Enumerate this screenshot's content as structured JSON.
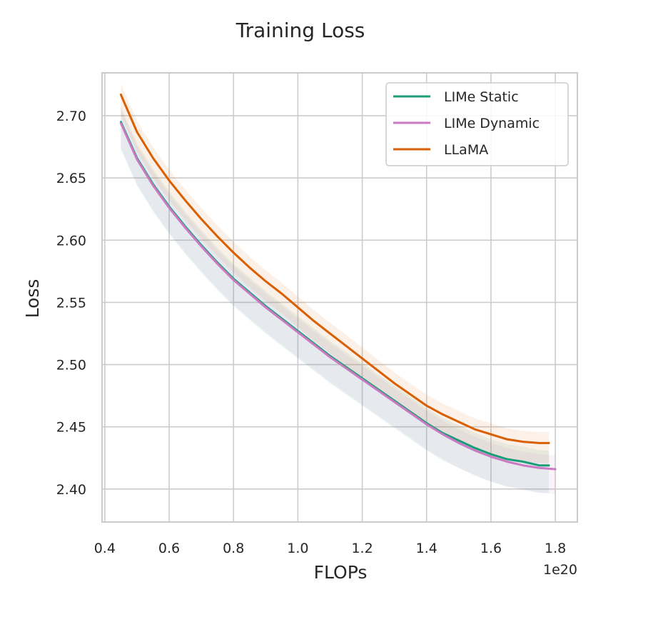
{
  "chart_data": {
    "type": "line",
    "title": "Training Loss",
    "xlabel": "FLOPs",
    "ylabel": "Loss",
    "x_offset_label": "1e20",
    "xlim": [
      0.3915,
      1.8685
    ],
    "ylim": [
      2.3735,
      2.7345
    ],
    "xticks": [
      0.4,
      0.6,
      0.8,
      1.0,
      1.2,
      1.4,
      1.6,
      1.8
    ],
    "xtick_labels": [
      "0.4",
      "0.6",
      "0.8",
      "1.0",
      "1.2",
      "1.4",
      "1.6",
      "1.8"
    ],
    "yticks": [
      2.4,
      2.45,
      2.5,
      2.55,
      2.6,
      2.65,
      2.7
    ],
    "ytick_labels": [
      "2.40",
      "2.45",
      "2.50",
      "2.55",
      "2.60",
      "2.65",
      "2.70"
    ],
    "grid": true,
    "legend_position": "top-right",
    "series": [
      {
        "name": "LIMe Static",
        "color": "#1b9e77",
        "x": [
          0.45,
          0.5,
          0.55,
          0.6,
          0.65,
          0.7,
          0.75,
          0.8,
          0.85,
          0.9,
          0.95,
          1.0,
          1.05,
          1.1,
          1.15,
          1.2,
          1.25,
          1.3,
          1.35,
          1.4,
          1.45,
          1.5,
          1.55,
          1.6,
          1.65,
          1.7,
          1.75,
          1.78
        ],
        "y": [
          2.695,
          2.666,
          2.645,
          2.627,
          2.611,
          2.596,
          2.582,
          2.569,
          2.558,
          2.547,
          2.537,
          2.527,
          2.517,
          2.507,
          2.498,
          2.489,
          2.48,
          2.471,
          2.462,
          2.453,
          2.445,
          2.439,
          2.433,
          2.428,
          2.424,
          2.422,
          2.419,
          2.419
        ]
      },
      {
        "name": "LIMe Dynamic",
        "color": "#cc79c4",
        "x": [
          0.45,
          0.5,
          0.55,
          0.6,
          0.65,
          0.7,
          0.75,
          0.8,
          0.85,
          0.9,
          0.95,
          1.0,
          1.05,
          1.1,
          1.15,
          1.2,
          1.25,
          1.3,
          1.35,
          1.4,
          1.45,
          1.5,
          1.55,
          1.6,
          1.65,
          1.7,
          1.75,
          1.8
        ],
        "y": [
          2.694,
          2.665,
          2.644,
          2.626,
          2.61,
          2.595,
          2.581,
          2.568,
          2.557,
          2.546,
          2.536,
          2.526,
          2.516,
          2.506,
          2.497,
          2.488,
          2.479,
          2.47,
          2.461,
          2.452,
          2.444,
          2.437,
          2.431,
          2.426,
          2.422,
          2.419,
          2.417,
          2.416
        ]
      },
      {
        "name": "LLaMA",
        "color": "#d95f02",
        "x": [
          0.45,
          0.5,
          0.55,
          0.6,
          0.65,
          0.7,
          0.75,
          0.8,
          0.85,
          0.9,
          0.95,
          1.0,
          1.05,
          1.1,
          1.15,
          1.2,
          1.25,
          1.3,
          1.35,
          1.4,
          1.45,
          1.5,
          1.55,
          1.6,
          1.65,
          1.7,
          1.75,
          1.78
        ],
        "y": [
          2.717,
          2.687,
          2.666,
          2.648,
          2.632,
          2.617,
          2.603,
          2.59,
          2.578,
          2.567,
          2.557,
          2.546,
          2.535,
          2.525,
          2.515,
          2.505,
          2.495,
          2.485,
          2.476,
          2.467,
          2.46,
          2.454,
          2.448,
          2.444,
          2.44,
          2.438,
          2.437,
          2.437
        ]
      }
    ]
  }
}
